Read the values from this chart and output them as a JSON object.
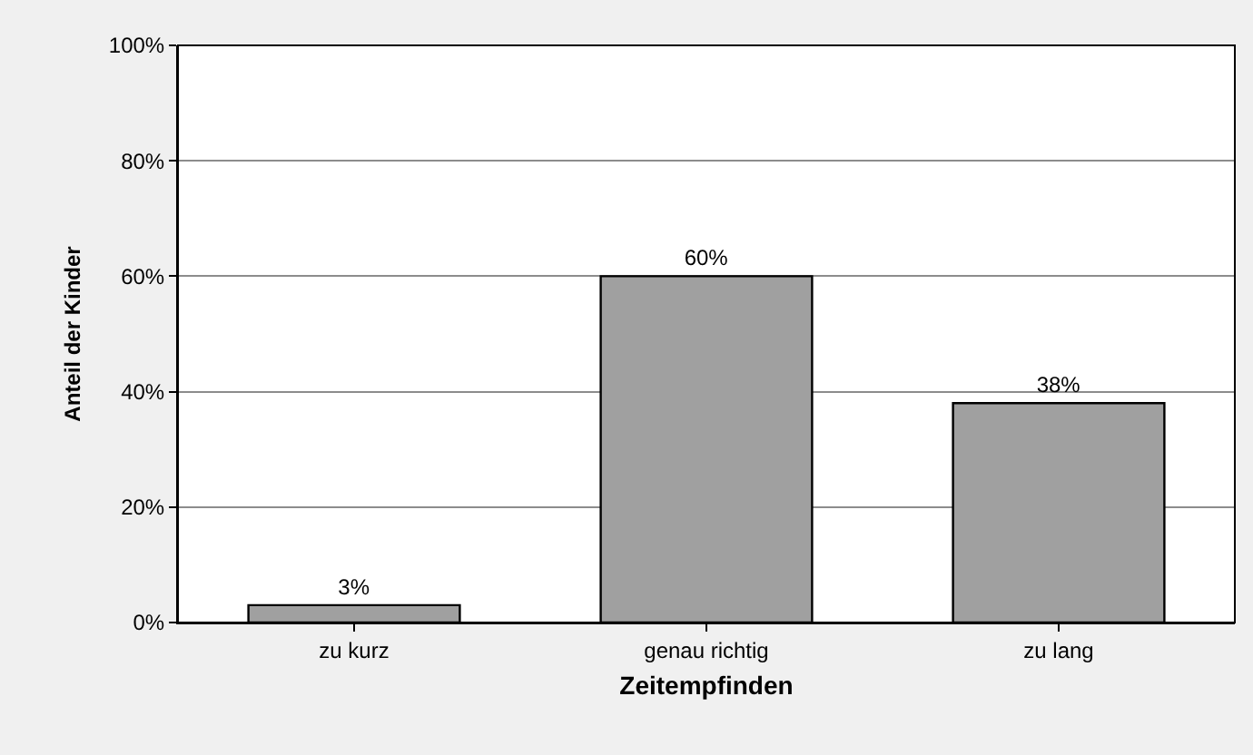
{
  "chart_data": {
    "type": "bar",
    "xlabel": "Zeitempfinden",
    "ylabel": "Anteil der Kinder",
    "categories": [
      "zu kurz",
      "genau richtig",
      "zu lang"
    ],
    "values": [
      3,
      60,
      38
    ],
    "value_labels": [
      "3%",
      "60%",
      "38%"
    ],
    "color": "#a0a0a0",
    "ylim": [
      0,
      100
    ],
    "yticks": [
      {
        "value": 0,
        "label": "0%"
      },
      {
        "value": 20,
        "label": "20%"
      },
      {
        "value": 40,
        "label": "40%"
      },
      {
        "value": 60,
        "label": "60%"
      },
      {
        "value": 80,
        "label": "80%"
      },
      {
        "value": 100,
        "label": "100%"
      }
    ],
    "grid": "y",
    "legend": false
  }
}
